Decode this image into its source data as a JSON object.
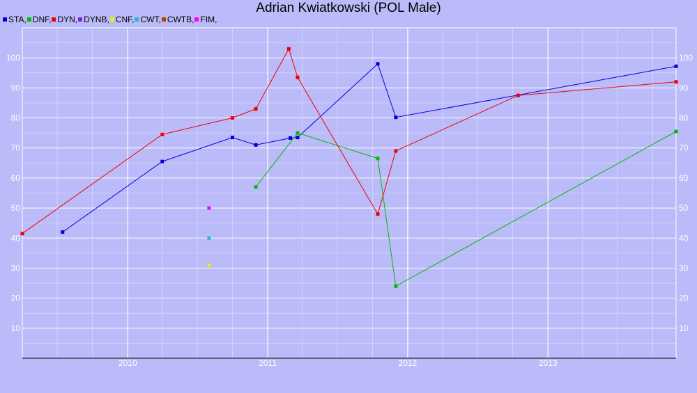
{
  "chart_data": {
    "type": "line",
    "title": "Adrian Kwiatkowski (POL Male)",
    "xlabel": "",
    "ylabel": "",
    "x_axis": {
      "type": "date",
      "min": "2009-04-01",
      "max": "2013-12-01",
      "ticks": [
        "2010",
        "2011",
        "2012",
        "2013"
      ]
    },
    "y_axis": {
      "min": 0,
      "max": 110,
      "ticks": [
        10,
        20,
        30,
        40,
        50,
        60,
        70,
        80,
        90,
        100
      ],
      "minor_step": 5
    },
    "grid": true,
    "legend_position": "top-left",
    "legend": [
      {
        "label": "STA,",
        "color": "#0000dd"
      },
      {
        "label": "DNF,",
        "color": "#00bb00"
      },
      {
        "label": "DYN,",
        "color": "#ee0000"
      },
      {
        "label": "DYNB,",
        "color": "#7722ee"
      },
      {
        "label": "CNF,",
        "color": "#eeee00"
      },
      {
        "label": "CWT,",
        "color": "#22bbdd"
      },
      {
        "label": "CWTB,",
        "color": "#aa4400"
      },
      {
        "label": "FIM,",
        "color": "#ff00ff"
      }
    ],
    "series": [
      {
        "name": "STA",
        "color": "#0000dd",
        "points": [
          {
            "x": "2009-07-15",
            "y": 42
          },
          {
            "x": "2010-04-01",
            "y": 65.5
          },
          {
            "x": "2010-10-01",
            "y": 73.5
          },
          {
            "x": "2010-12-01",
            "y": 71
          },
          {
            "x": "2011-03-01",
            "y": 73.3
          },
          {
            "x": "2011-03-20",
            "y": 73.5
          },
          {
            "x": "2011-10-15",
            "y": 98
          },
          {
            "x": "2011-12-01",
            "y": 80.2
          },
          {
            "x": "2013-12-01",
            "y": 97.2
          }
        ]
      },
      {
        "name": "DNF",
        "color": "#00bb00",
        "points": [
          {
            "x": "2010-12-01",
            "y": 57
          },
          {
            "x": "2011-03-20",
            "y": 75
          },
          {
            "x": "2011-10-15",
            "y": 66.5
          },
          {
            "x": "2011-12-01",
            "y": 24
          },
          {
            "x": "2013-12-01",
            "y": 75.5
          }
        ]
      },
      {
        "name": "DYN",
        "color": "#ee0000",
        "points": [
          {
            "x": "2009-04-01",
            "y": 41.5
          },
          {
            "x": "2010-04-01",
            "y": 74.5
          },
          {
            "x": "2010-10-01",
            "y": 80
          },
          {
            "x": "2010-12-01",
            "y": 83
          },
          {
            "x": "2011-02-25",
            "y": 103
          },
          {
            "x": "2011-03-20",
            "y": 93.5
          },
          {
            "x": "2011-10-15",
            "y": 48
          },
          {
            "x": "2011-12-01",
            "y": 69
          },
          {
            "x": "2012-10-15",
            "y": 87.5
          },
          {
            "x": "2013-12-01",
            "y": 92
          }
        ]
      },
      {
        "name": "CNF",
        "color": "#eeee00",
        "points": [
          {
            "x": "2010-08-01",
            "y": 31
          }
        ]
      },
      {
        "name": "CWT",
        "color": "#22bbdd",
        "points": [
          {
            "x": "2010-08-01",
            "y": 40
          }
        ]
      },
      {
        "name": "FIM",
        "color": "#ff00ff",
        "points": [
          {
            "x": "2010-08-01",
            "y": 50
          }
        ]
      }
    ]
  }
}
